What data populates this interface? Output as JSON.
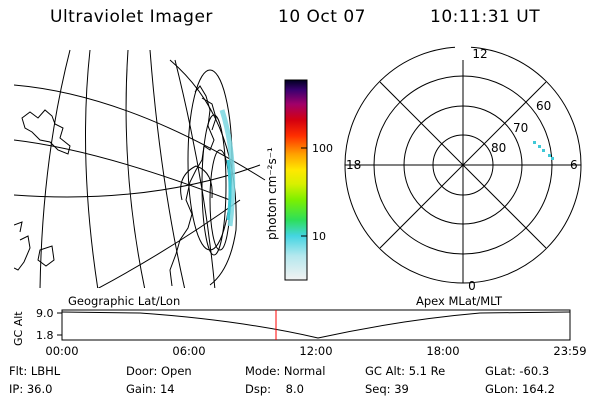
{
  "header": {
    "instrument": "Ultraviolet Imager",
    "date": "10 Oct 07",
    "time": "10:11:31 UT"
  },
  "colorbar": {
    "label": "photon cm⁻²s⁻¹",
    "ticks": [
      "100",
      "10"
    ]
  },
  "polar_plot": {
    "mlt_labels": {
      "top": "12",
      "left": "18",
      "right": "6",
      "bottom": "0"
    },
    "lat_labels": [
      "60",
      "70",
      "80"
    ]
  },
  "timeline": {
    "left_label": "Geographic Lat/Lon",
    "right_label": "Apex MLat/MLT",
    "y_axis_label": "GC Alt",
    "y_ticks": [
      "9.0",
      "1.8"
    ],
    "x_ticks": [
      "00:00",
      "06:00",
      "12:00",
      "18:00",
      "23:59"
    ],
    "marker_color": "#ff0000"
  },
  "info": {
    "filter": "Flt: LBHL",
    "door": "Door: Open",
    "mode": "Mode: Normal",
    "gc_alt": "GC Alt: 5.1 Re",
    "glat": "GLat: -60.3",
    "ip": "IP: 36.0",
    "gain": "Gain: 14",
    "dsp": "Dsp:    8.0",
    "seq": "Seq: 39",
    "glon": "GLon: 164.2"
  }
}
